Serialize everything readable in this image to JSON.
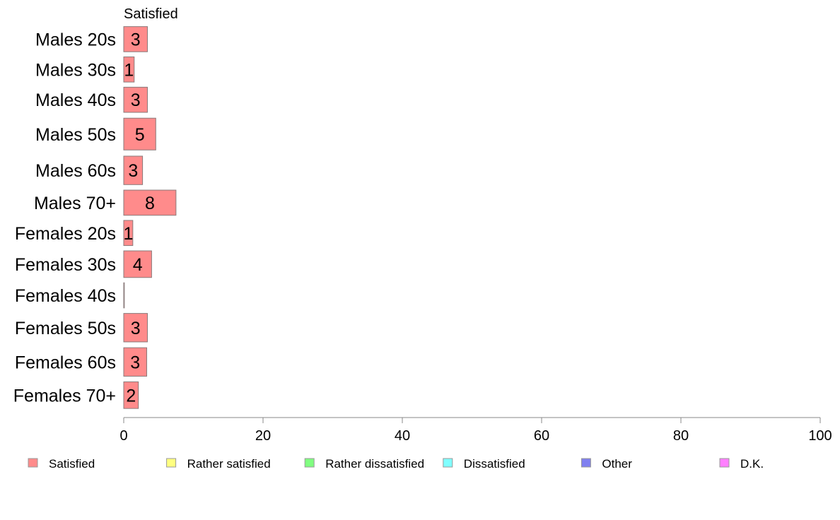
{
  "chart_data": {
    "type": "bar",
    "orientation": "horizontal",
    "stacked": true,
    "categories": [
      "Males 20s",
      "Males 30s",
      "Males 40s",
      "Males 50s",
      "Males 60s",
      "Males 70+",
      "Females 20s",
      "Females 30s",
      "Females 40s",
      "Females 50s",
      "Females 60s",
      "Females 70+"
    ],
    "series": [
      {
        "name": "Satisfied",
        "color": "#ff8b8b",
        "values": [
          3.4,
          1.5,
          3.4,
          4.6,
          2.7,
          7.5,
          1.3,
          4.0,
          0,
          3.4,
          3.3,
          2.1
        ],
        "labels": [
          "3",
          "1",
          "3",
          "5",
          "3",
          "8",
          "1",
          "4",
          "",
          "3",
          "3",
          "2"
        ]
      }
    ],
    "bar_heights_relative": [
      0.68,
      0.68,
      0.68,
      0.86,
      0.77,
      0.68,
      0.68,
      0.72,
      0.68,
      0.77,
      0.77,
      0.72
    ],
    "visible_series_title": "Satisfied",
    "xlim": [
      0,
      100
    ],
    "xticks": [
      0,
      20,
      40,
      60,
      80,
      100
    ],
    "legend": {
      "placement": "bottom",
      "entries": [
        {
          "name": "Satisfied",
          "color": "#ff8b8b"
        },
        {
          "name": "Rather satisfied",
          "color": "#ffff80"
        },
        {
          "name": "Rather dissatisfied",
          "color": "#80ff80"
        },
        {
          "name": "Dissatisfied",
          "color": "#80ffff"
        },
        {
          "name": "Other",
          "color": "#8080f0"
        },
        {
          "name": "D.K.",
          "color": "#ff80ff"
        }
      ]
    },
    "grid": false
  }
}
